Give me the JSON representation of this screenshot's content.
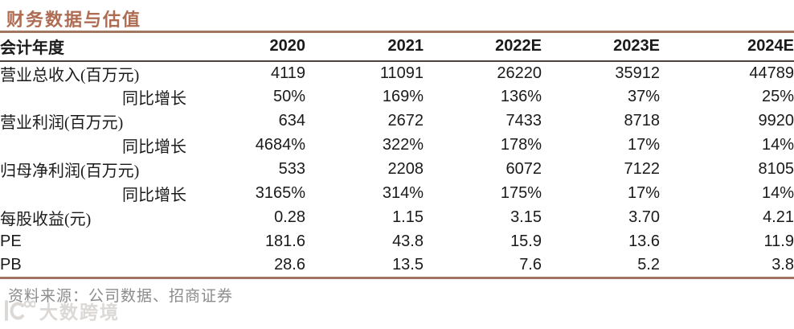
{
  "title": "财务数据与估值",
  "table": {
    "header": [
      "会计年度",
      "2020",
      "2021",
      "2022E",
      "2023E",
      "2024E"
    ],
    "rows": [
      {
        "label": "营业总收入(百万元)",
        "sub": false,
        "latin": false,
        "values": [
          "4119",
          "11091",
          "26220",
          "35912",
          "44789"
        ]
      },
      {
        "label": "同比增长",
        "sub": true,
        "latin": false,
        "values": [
          "50%",
          "169%",
          "136%",
          "37%",
          "25%"
        ]
      },
      {
        "label": "营业利润(百万元)",
        "sub": false,
        "latin": false,
        "values": [
          "634",
          "2672",
          "7433",
          "8718",
          "9920"
        ]
      },
      {
        "label": "同比增长",
        "sub": true,
        "latin": false,
        "values": [
          "4684%",
          "322%",
          "178%",
          "17%",
          "14%"
        ]
      },
      {
        "label": "归母净利润(百万元)",
        "sub": false,
        "latin": false,
        "values": [
          "533",
          "2208",
          "6072",
          "7122",
          "8105"
        ]
      },
      {
        "label": "同比增长",
        "sub": true,
        "latin": false,
        "values": [
          "3165%",
          "314%",
          "175%",
          "17%",
          "14%"
        ]
      },
      {
        "label": "每股收益(元)",
        "sub": false,
        "latin": false,
        "values": [
          "0.28",
          "1.15",
          "3.15",
          "3.70",
          "4.21"
        ]
      },
      {
        "label": "PE",
        "sub": false,
        "latin": true,
        "values": [
          "181.6",
          "43.8",
          "15.9",
          "13.6",
          "11.9"
        ]
      },
      {
        "label": "PB",
        "sub": false,
        "latin": true,
        "values": [
          "28.6",
          "13.5",
          "7.6",
          "5.2",
          "3.8"
        ]
      }
    ]
  },
  "source": "资料来源：公司数据、招商证券",
  "watermark": {
    "text": "大数跨境"
  },
  "colors": {
    "accent_title": "#AE6C52",
    "rule_brown": "#A3765E",
    "rule_dark": "#4E443D",
    "source_gray": "#8C8C8C",
    "watermark_gray": "#DBD8D5"
  }
}
